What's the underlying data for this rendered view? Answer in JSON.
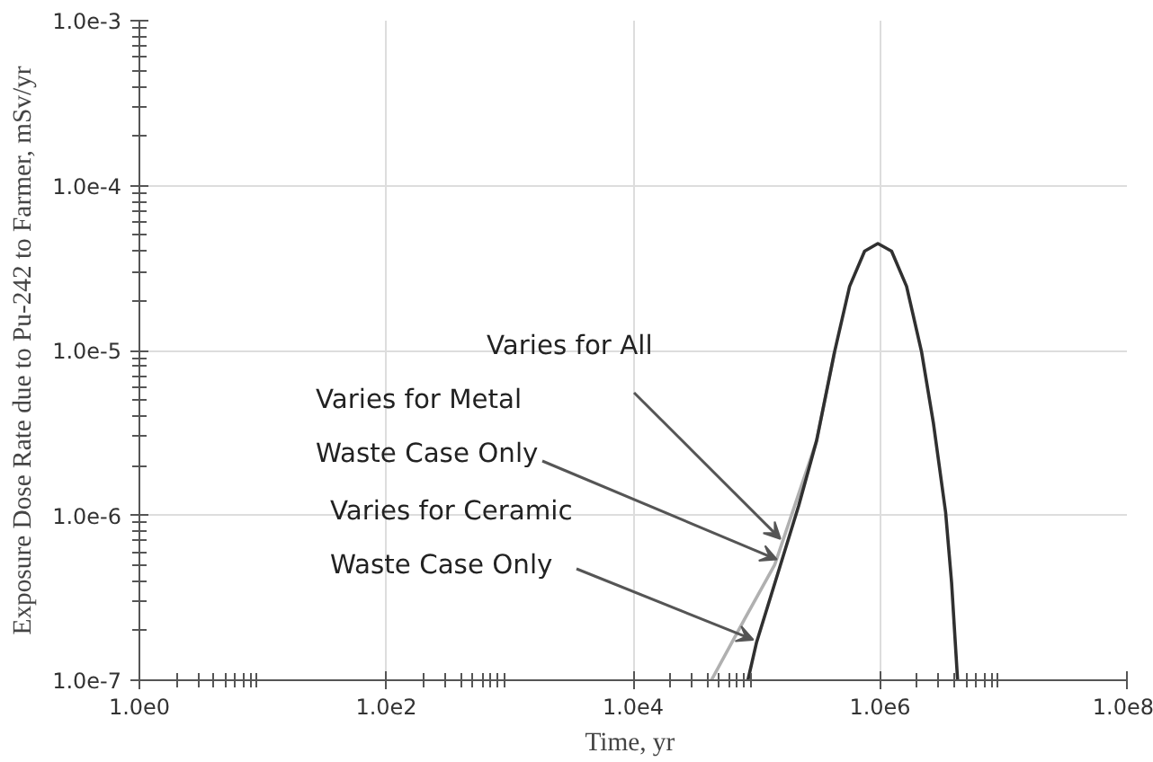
{
  "chart_data": {
    "type": "line",
    "xlabel": "Time,  yr",
    "ylabel": "Exposure Dose Rate due to Pu-242 to Farmer, mSv/yr",
    "log": "xy",
    "grid": true,
    "line_style": "solid",
    "xlim": [
      1,
      100000000
    ],
    "ylim": [
      1e-07,
      0.001
    ],
    "xticks": [
      {
        "value": 1,
        "label": "1.0e0"
      },
      {
        "value": 100,
        "label": "1.0e2"
      },
      {
        "value": 10000,
        "label": "1.0e4"
      },
      {
        "value": 1000000,
        "label": "1.0e6"
      },
      {
        "value": 100000000,
        "label": "1.0e8"
      }
    ],
    "yticks": [
      {
        "value": 1e-07,
        "label": "1.0e-7"
      },
      {
        "value": 1e-06,
        "label": "1.0e-6"
      },
      {
        "value": 1e-05,
        "label": "1.0e-5"
      },
      {
        "value": 0.0001,
        "label": "1.0e-4"
      },
      {
        "value": 0.001,
        "label": "1.0e-3"
      }
    ],
    "series": [
      {
        "color": "#b0b0b0",
        "x": [
          43000,
          80000,
          140000,
          195000,
          306000,
          428000
        ],
        "values": [
          1e-07,
          2.35e-07,
          5e-07,
          1.04e-06,
          2.83e-06,
          9.8e-06
        ]
      },
      {
        "color": "#303030",
        "x": [
          85000,
          100000,
          156000,
          219000,
          306000,
          428000,
          567000,
          750000,
          960000,
          1240000,
          1640000,
          2170000,
          2710000,
          3400000,
          3800000,
          4250000
        ],
        "values": [
          1e-07,
          1.7e-07,
          5e-07,
          1.14e-06,
          2.83e-06,
          9.8e-06,
          2.45e-05,
          4e-05,
          4.45e-05,
          4e-05,
          2.45e-05,
          9.8e-06,
          3.6e-06,
          1.04e-06,
          3.9e-07,
          1e-07
        ]
      }
    ],
    "annotations": [
      {
        "text": "Varies for All",
        "x": 156000,
        "y": 7.2e-07
      },
      {
        "text": "Varies for Metal\nWaste Case Only",
        "x": 146000,
        "y": 5.4e-07
      },
      {
        "text": "Varies for Ceramic\nWaste Case Only",
        "x": 94000,
        "y": 1.76e-07
      }
    ]
  }
}
